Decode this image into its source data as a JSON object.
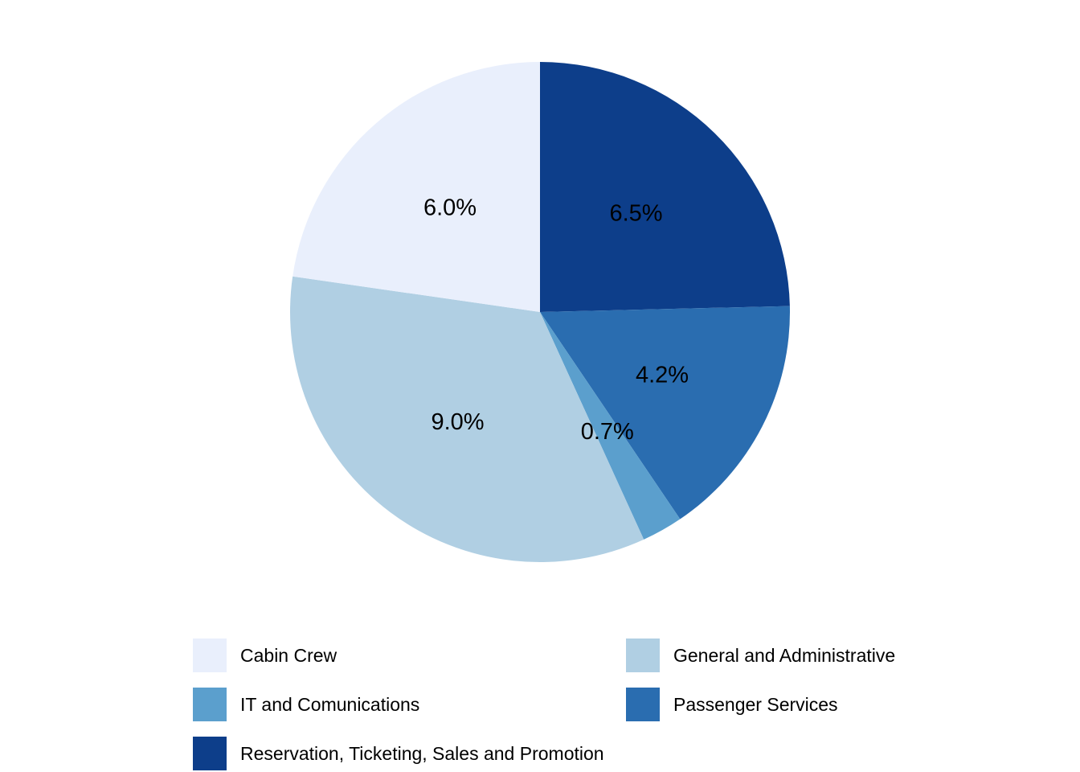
{
  "chart_data": {
    "type": "pie",
    "start": "top",
    "direction": "clockwise",
    "slices": [
      {
        "label": "Reservation, Ticketing, Sales and Promotion",
        "value": 6.5,
        "display": "6.5%",
        "color": "#0d3e8a"
      },
      {
        "label": "Passenger Services",
        "value": 4.2,
        "display": "4.2%",
        "color": "#2a6db0"
      },
      {
        "label": "IT and Comunications",
        "value": 0.7,
        "display": "0.7%",
        "color": "#5b9fcd"
      },
      {
        "label": "General and Administrative",
        "value": 9.0,
        "display": "9.0%",
        "color": "#b0cfe3"
      },
      {
        "label": "Cabin Crew",
        "value": 6.0,
        "display": "6.0%",
        "color": "#e9effc"
      }
    ],
    "legend": {
      "position": "bottom",
      "columns": 2,
      "entries": [
        "Cabin Crew",
        "General and Administrative",
        "IT and Comunications",
        "Passenger Services",
        "Reservation, Ticketing, Sales and Promotion"
      ]
    }
  }
}
